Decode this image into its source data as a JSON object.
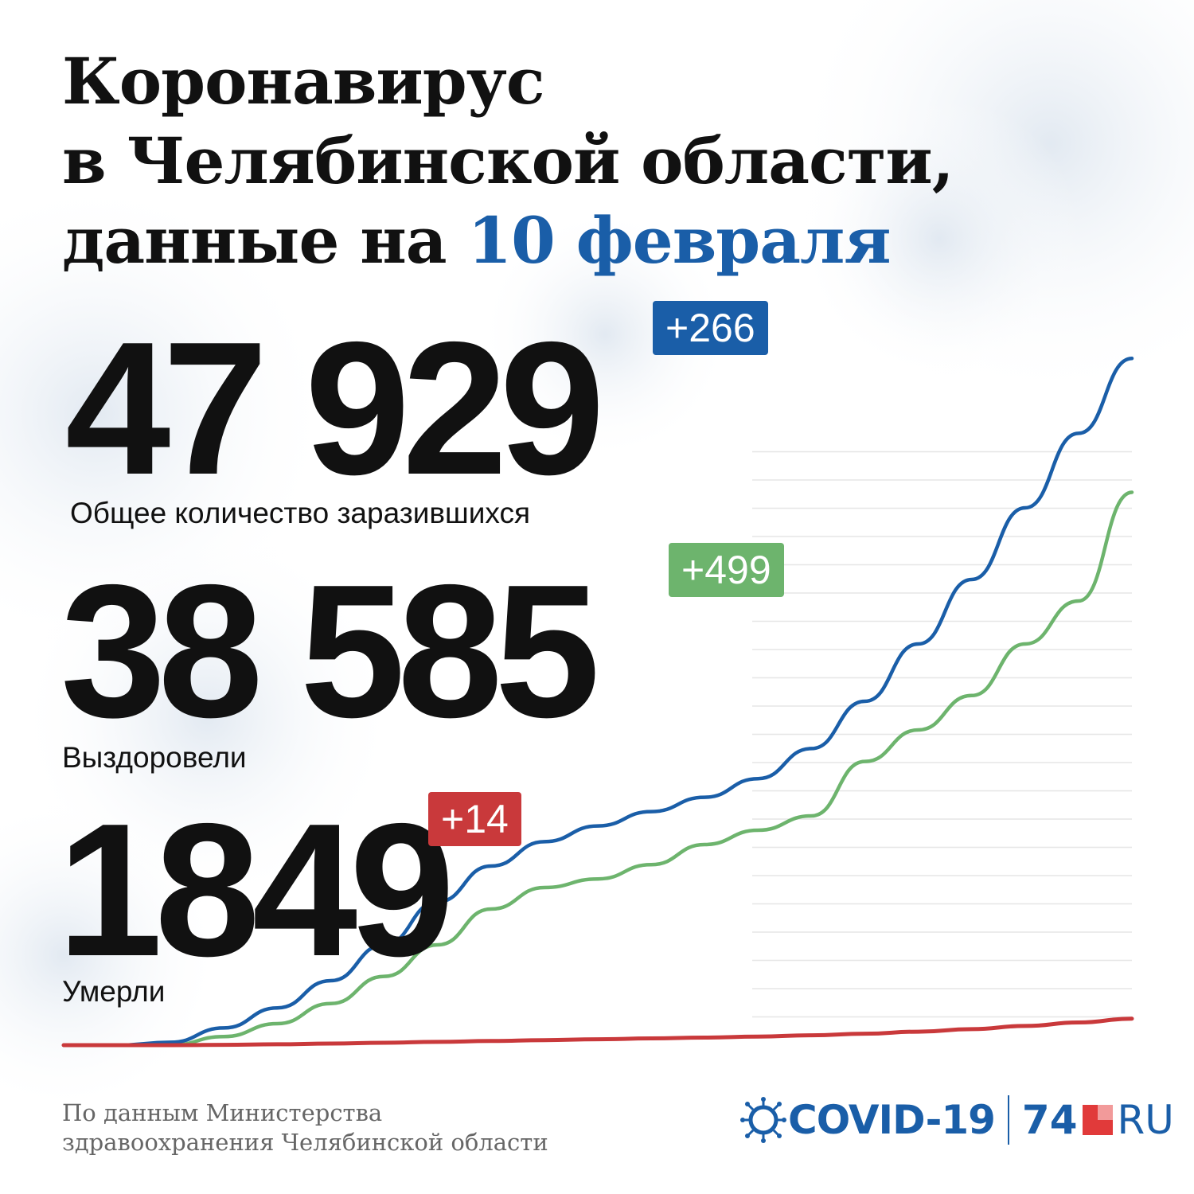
{
  "title": {
    "line1": "Коронавирус",
    "line2": "в Челябинской области,",
    "line3_prefix": "данные на",
    "line3_accent": "10 февраля"
  },
  "stats": [
    {
      "value": "47 929",
      "delta": "+266",
      "label": "Общее количество заразившихся",
      "color": "#1a5ea8"
    },
    {
      "value": "38 585",
      "delta": "+499",
      "label": "Выздоровели",
      "color": "#6db46d"
    },
    {
      "value": "1849",
      "delta": "+14",
      "label": "Умерли",
      "color": "#c9393b"
    }
  ],
  "source": {
    "line1": "По данным Министерства",
    "line2": "здравоохранения Челябинской области"
  },
  "logo": {
    "covid": "COVID-19",
    "number": "74",
    "ru": "RU"
  },
  "chart_data": {
    "type": "line",
    "x": [
      0,
      5,
      10,
      15,
      20,
      25,
      30,
      35,
      40,
      45,
      50,
      55,
      60,
      65,
      70,
      75,
      80,
      85,
      90,
      95,
      100
    ],
    "series": [
      {
        "color": "#1a5ea8",
        "values": [
          0,
          0,
          200,
          1200,
          2600,
          4500,
          7000,
          10000,
          12500,
          14200,
          15300,
          16300,
          17300,
          18600,
          20700,
          24000,
          28000,
          32500,
          37500,
          42700,
          47929
        ]
      },
      {
        "color": "#6db46d",
        "values": [
          0,
          0,
          0,
          600,
          1500,
          2900,
          4800,
          7000,
          9500,
          11000,
          11600,
          12600,
          14000,
          15000,
          16000,
          19800,
          22000,
          24400,
          28000,
          31000,
          38585
        ]
      },
      {
        "color": "#c9393b",
        "values": [
          0,
          0,
          0,
          20,
          60,
          110,
          170,
          230,
          290,
          350,
          410,
          470,
          530,
          600,
          690,
          800,
          940,
          1120,
          1340,
          1580,
          1849
        ]
      }
    ],
    "ylim": [
      0,
      50000
    ],
    "grid": true
  }
}
